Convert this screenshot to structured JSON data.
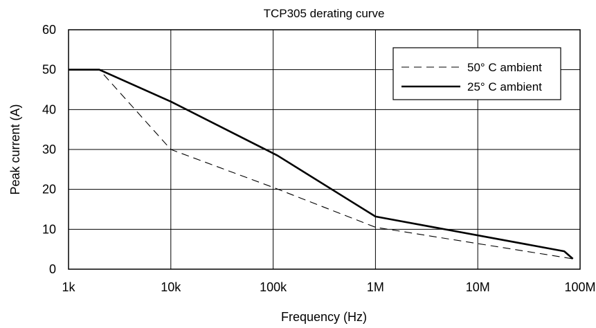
{
  "chart_data": {
    "type": "line",
    "title": "TCP305 derating curve",
    "xlabel": "Frequency (Hz)",
    "ylabel": "Peak current (A)",
    "xscale": "log",
    "xlim": [
      1000,
      100000000
    ],
    "ylim": [
      0,
      60
    ],
    "xticks": [
      {
        "value": 1000,
        "label": "1k"
      },
      {
        "value": 10000,
        "label": "10k"
      },
      {
        "value": 100000,
        "label": "100k"
      },
      {
        "value": 1000000,
        "label": "1M"
      },
      {
        "value": 10000000,
        "label": "10M"
      },
      {
        "value": 100000000,
        "label": "100M"
      }
    ],
    "yticks": [
      0,
      10,
      20,
      30,
      40,
      50,
      60
    ],
    "grid": true,
    "legend_position": "top-right",
    "series": [
      {
        "name": "50° C ambient",
        "style": "dashed",
        "color": "#000000",
        "points": [
          {
            "x": 1000,
            "y": 50
          },
          {
            "x": 2000,
            "y": 50
          },
          {
            "x": 10000,
            "y": 30
          },
          {
            "x": 100000,
            "y": 20.5
          },
          {
            "x": 1000000,
            "y": 10.5
          },
          {
            "x": 85000000,
            "y": 2.6
          }
        ]
      },
      {
        "name": "25° C ambient",
        "style": "solid",
        "color": "#000000",
        "points": [
          {
            "x": 1000,
            "y": 50
          },
          {
            "x": 2000,
            "y": 50
          },
          {
            "x": 10000,
            "y": 42
          },
          {
            "x": 110000,
            "y": 28.5
          },
          {
            "x": 1000000,
            "y": 13.2
          },
          {
            "x": 70000000,
            "y": 4.5
          },
          {
            "x": 85000000,
            "y": 2.6
          }
        ]
      }
    ]
  }
}
